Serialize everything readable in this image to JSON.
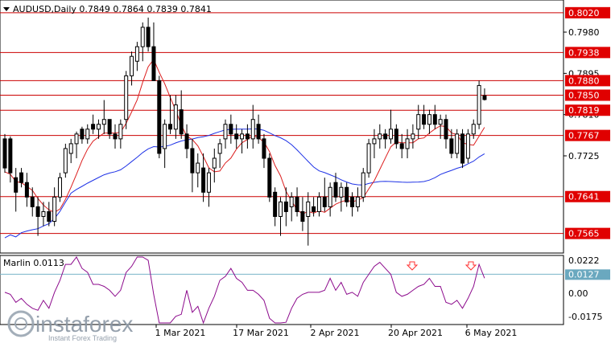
{
  "header": {
    "symbol_line": "AUDUSD,Daily  0.7849 0.7864 0.7839 0.7841"
  },
  "price_axis": {
    "ticks": [
      "0.7980",
      "0.7895",
      "0.7810",
      "0.7725"
    ]
  },
  "levels": [
    {
      "label": "0.8020",
      "value": 0.802
    },
    {
      "label": "0.7938",
      "value": 0.7938
    },
    {
      "label": "0.7880",
      "value": 0.788
    },
    {
      "label": "0.7850",
      "value": 0.785
    },
    {
      "label": "0.7819",
      "value": 0.7819
    },
    {
      "label": "0.7767",
      "value": 0.7767
    },
    {
      "label": "0.7641",
      "value": 0.7641
    },
    {
      "label": "0.7565",
      "value": 0.7565
    }
  ],
  "indicator": {
    "title": "Marlin 0.0113",
    "ticks": [
      "0.0222",
      "0.00",
      "-0.0175"
    ],
    "current_label": "0.0127",
    "current_value": 0.0127
  },
  "date_axis": {
    "ticks": [
      "1 Mar 2021",
      "17 Mar 2021",
      "2 Apr 2021",
      "20 Apr 2021",
      "6 May 2021"
    ]
  },
  "brand": {
    "name": "instaforex",
    "tagline": "Instant Forex Trading"
  },
  "colors": {
    "level_line": "#cc0000",
    "level_label_bg": "#e00000",
    "ma_blue": "#1e32e6",
    "ma_red": "#dc1e1e",
    "marlin_line": "#8c0a8c",
    "marlin_level": "#78b4c8",
    "marlin_label_bg": "#6aa8bf",
    "arrow": "#ff3030"
  },
  "chart_data": {
    "type": "candlestick",
    "instrument": "AUDUSD",
    "timeframe": "Daily",
    "ohlc_last": {
      "open": 0.7849,
      "high": 0.7864,
      "low": 0.7839,
      "close": 0.7841
    },
    "candles": [
      [
        0.776,
        0.777,
        0.769,
        0.77
      ],
      [
        0.776,
        0.7765,
        0.767,
        0.769
      ],
      [
        0.768,
        0.77,
        0.761,
        0.765
      ],
      [
        0.769,
        0.77,
        0.766,
        0.767
      ],
      [
        0.767,
        0.769,
        0.762,
        0.764
      ],
      [
        0.764,
        0.766,
        0.76,
        0.762
      ],
      [
        0.762,
        0.764,
        0.756,
        0.76
      ],
      [
        0.76,
        0.763,
        0.758,
        0.761
      ],
      [
        0.761,
        0.763,
        0.758,
        0.759
      ],
      [
        0.759,
        0.766,
        0.758,
        0.764
      ],
      [
        0.764,
        0.769,
        0.763,
        0.768
      ],
      [
        0.769,
        0.775,
        0.768,
        0.774
      ],
      [
        0.773,
        0.776,
        0.771,
        0.775
      ],
      [
        0.775,
        0.7775,
        0.772,
        0.777
      ],
      [
        0.778,
        0.7785,
        0.775,
        0.776
      ],
      [
        0.776,
        0.779,
        0.775,
        0.778
      ],
      [
        0.779,
        0.781,
        0.777,
        0.778
      ],
      [
        0.778,
        0.78,
        0.776,
        0.779
      ],
      [
        0.779,
        0.784,
        0.777,
        0.78
      ],
      [
        0.78,
        0.78,
        0.776,
        0.777
      ],
      [
        0.777,
        0.779,
        0.774,
        0.776
      ],
      [
        0.776,
        0.78,
        0.774,
        0.779
      ],
      [
        0.78,
        0.79,
        0.778,
        0.789
      ],
      [
        0.789,
        0.794,
        0.787,
        0.793
      ],
      [
        0.792,
        0.796,
        0.79,
        0.795
      ],
      [
        0.795,
        0.8,
        0.792,
        0.799
      ],
      [
        0.799,
        0.801,
        0.794,
        0.795
      ],
      [
        0.795,
        0.8,
        0.788,
        0.788
      ],
      [
        0.788,
        0.789,
        0.772,
        0.773
      ],
      [
        0.774,
        0.78,
        0.77,
        0.779
      ],
      [
        0.779,
        0.785,
        0.777,
        0.778
      ],
      [
        0.778,
        0.785,
        0.776,
        0.783
      ],
      [
        0.782,
        0.786,
        0.776,
        0.777
      ],
      [
        0.777,
        0.779,
        0.772,
        0.774
      ],
      [
        0.774,
        0.776,
        0.765,
        0.769
      ],
      [
        0.769,
        0.773,
        0.766,
        0.771
      ],
      [
        0.77,
        0.773,
        0.763,
        0.765
      ],
      [
        0.765,
        0.77,
        0.762,
        0.769
      ],
      [
        0.77,
        0.774,
        0.767,
        0.772
      ],
      [
        0.773,
        0.776,
        0.77,
        0.775
      ],
      [
        0.776,
        0.78,
        0.774,
        0.779
      ],
      [
        0.779,
        0.781,
        0.775,
        0.777
      ],
      [
        0.777,
        0.779,
        0.774,
        0.776
      ],
      [
        0.776,
        0.778,
        0.773,
        0.777
      ],
      [
        0.777,
        0.779,
        0.774,
        0.776
      ],
      [
        0.776,
        0.783,
        0.774,
        0.78
      ],
      [
        0.779,
        0.781,
        0.775,
        0.776
      ],
      [
        0.776,
        0.777,
        0.77,
        0.772
      ],
      [
        0.772,
        0.773,
        0.763,
        0.764
      ],
      [
        0.765,
        0.766,
        0.758,
        0.76
      ],
      [
        0.76,
        0.764,
        0.756,
        0.763
      ],
      [
        0.763,
        0.766,
        0.758,
        0.761
      ],
      [
        0.762,
        0.765,
        0.759,
        0.764
      ],
      [
        0.764,
        0.766,
        0.76,
        0.761
      ],
      [
        0.761,
        0.764,
        0.757,
        0.759
      ],
      [
        0.76,
        0.765,
        0.754,
        0.763
      ],
      [
        0.762,
        0.764,
        0.76,
        0.761
      ],
      [
        0.761,
        0.765,
        0.76,
        0.764
      ],
      [
        0.764,
        0.768,
        0.761,
        0.762
      ],
      [
        0.762,
        0.767,
        0.76,
        0.766
      ],
      [
        0.767,
        0.769,
        0.763,
        0.764
      ],
      [
        0.764,
        0.767,
        0.761,
        0.766
      ],
      [
        0.766,
        0.767,
        0.762,
        0.763
      ],
      [
        0.764,
        0.765,
        0.76,
        0.762
      ],
      [
        0.762,
        0.766,
        0.761,
        0.764
      ],
      [
        0.764,
        0.77,
        0.763,
        0.769
      ],
      [
        0.769,
        0.776,
        0.768,
        0.775
      ],
      [
        0.775,
        0.778,
        0.772,
        0.776
      ],
      [
        0.776,
        0.779,
        0.774,
        0.777
      ],
      [
        0.777,
        0.778,
        0.774,
        0.776
      ],
      [
        0.776,
        0.782,
        0.775,
        0.778
      ],
      [
        0.778,
        0.779,
        0.774,
        0.775
      ],
      [
        0.775,
        0.777,
        0.772,
        0.774
      ],
      [
        0.774,
        0.778,
        0.772,
        0.776
      ],
      [
        0.776,
        0.779,
        0.774,
        0.777
      ],
      [
        0.778,
        0.783,
        0.776,
        0.781
      ],
      [
        0.781,
        0.783,
        0.778,
        0.779
      ],
      [
        0.779,
        0.782,
        0.777,
        0.781
      ],
      [
        0.781,
        0.783,
        0.778,
        0.779
      ],
      [
        0.779,
        0.781,
        0.776,
        0.78
      ],
      [
        0.78,
        0.781,
        0.774,
        0.776
      ],
      [
        0.776,
        0.778,
        0.772,
        0.773
      ],
      [
        0.773,
        0.778,
        0.772,
        0.777
      ],
      [
        0.777,
        0.778,
        0.77,
        0.771
      ],
      [
        0.772,
        0.778,
        0.771,
        0.777
      ],
      [
        0.777,
        0.78,
        0.776,
        0.779
      ],
      [
        0.779,
        0.788,
        0.778,
        0.787
      ],
      [
        0.7849,
        0.7864,
        0.7839,
        0.7841
      ]
    ],
    "x_ticks": [
      "1 Mar 2021",
      "17 Mar 2021",
      "2 Apr 2021",
      "20 Apr 2021",
      "6 May 2021"
    ]
  }
}
